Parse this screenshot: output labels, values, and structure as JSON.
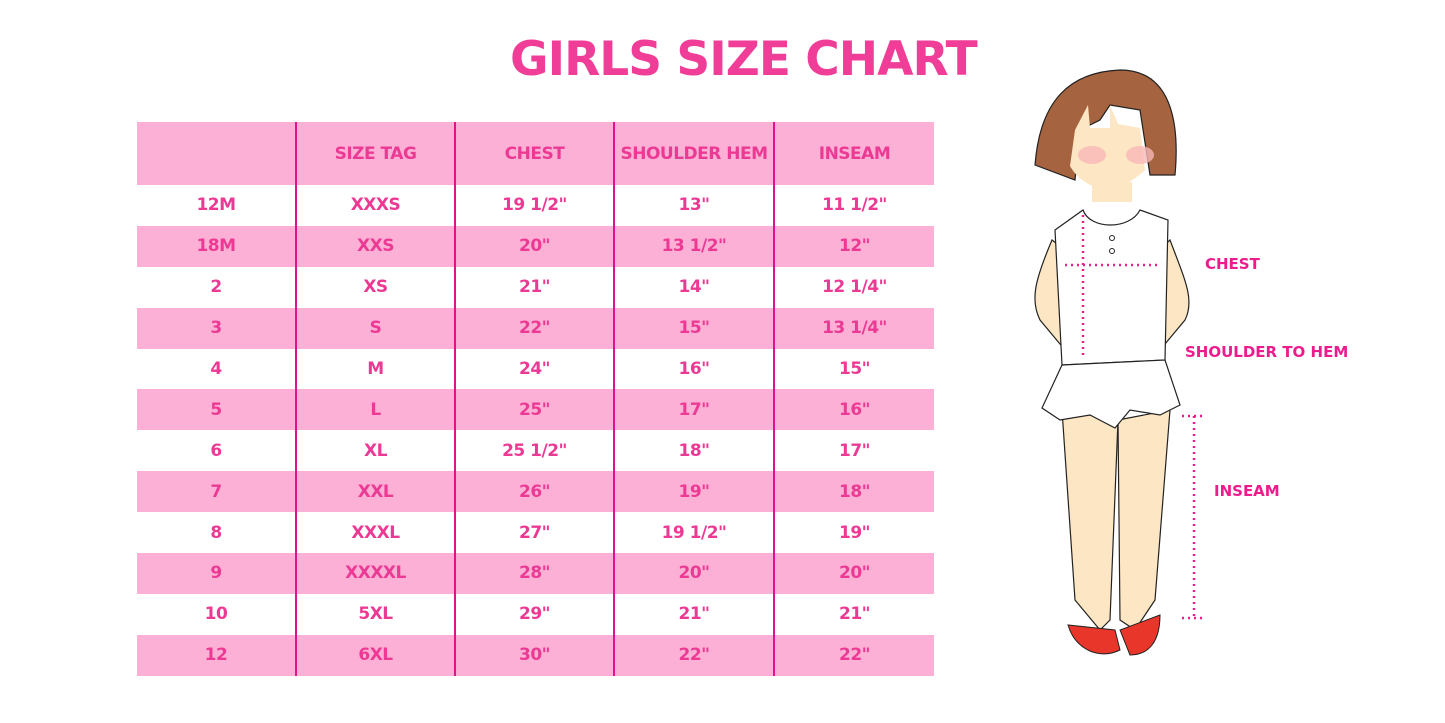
{
  "title": "GIRLS SIZE CHART",
  "table": {
    "headers": [
      "",
      "SIZE TAG",
      "CHEST",
      "SHOULDER HEM",
      "INSEAM"
    ],
    "rows": [
      [
        "12M",
        "XXXS",
        "19 1/2\"",
        "13\"",
        "11 1/2\""
      ],
      [
        "18M",
        "XXS",
        "20\"",
        "13 1/2\"",
        "12\""
      ],
      [
        "2",
        "XS",
        "21\"",
        "14\"",
        "12 1/4\""
      ],
      [
        "3",
        "S",
        "22\"",
        "15\"",
        "13 1/4\""
      ],
      [
        "4",
        "M",
        "24\"",
        "16\"",
        "15\""
      ],
      [
        "5",
        "L",
        "25\"",
        "17\"",
        "16\""
      ],
      [
        "6",
        "XL",
        "25 1/2\"",
        "18\"",
        "17\""
      ],
      [
        "7",
        "XXL",
        "26\"",
        "19\"",
        "18\""
      ],
      [
        "8",
        "XXXL",
        "27\"",
        "19 1/2\"",
        "19\""
      ],
      [
        "9",
        "XXXXL",
        "28\"",
        "20\"",
        "20\""
      ],
      [
        "10",
        "5XL",
        "29\"",
        "21\"",
        "21\""
      ],
      [
        "12",
        "6XL",
        "30\"",
        "22\"",
        "22\""
      ]
    ]
  },
  "illustration": {
    "labels": {
      "chest": "CHEST",
      "shoulder_to_hem": "SHOULDER TO HEM",
      "inseam": "INSEAM"
    }
  },
  "colors": {
    "accent": "#ec3a94",
    "row_fill": "#fdb0d6",
    "divider": "#e0138c"
  }
}
